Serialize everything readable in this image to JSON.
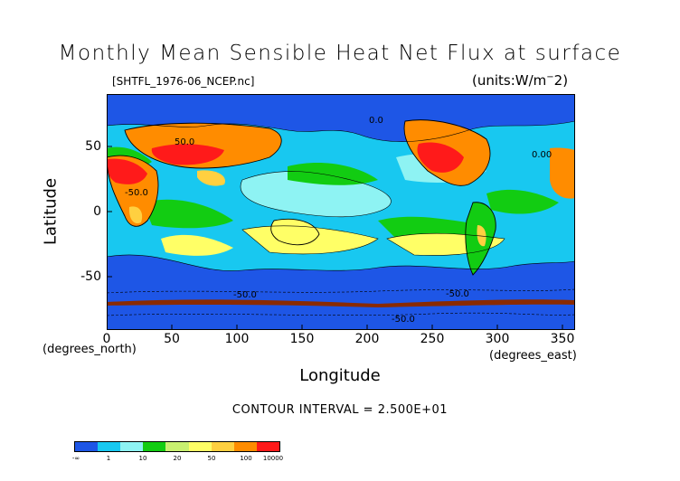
{
  "title": "Monthly Mean Sensible Heat Net Flux at surface",
  "file_label": "[SHTFL_1976-06_NCEP.nc]",
  "units_label": "(units:W/m^-2)",
  "x_axis": {
    "label": "Longitude",
    "unit_label": "(degrees_east)",
    "ticks": [
      "0",
      "50",
      "100",
      "150",
      "200",
      "250",
      "300",
      "350"
    ],
    "range": [
      0,
      360
    ]
  },
  "y_axis": {
    "label": "Latitude",
    "unit_label": "(degrees_north)",
    "ticks": [
      "50",
      "0",
      "-50"
    ],
    "range": [
      -90,
      90
    ]
  },
  "contour_interval": "CONTOUR INTERVAL = 2.500E+01",
  "contour_labels": [
    "50.0",
    "-50.0",
    "0.0",
    "-50.0",
    "-50.0",
    "0.00",
    "-50.0"
  ],
  "colorbar": {
    "colors": [
      "#1e56e6",
      "#18c8f0",
      "#8ef3f3",
      "#12cc12",
      "#c8f070",
      "#ffff66",
      "#ffd040",
      "#ff8c00",
      "#ff1a1a"
    ],
    "labels": [
      "-∞",
      "1",
      "10",
      "20",
      "50",
      "100",
      "10000"
    ]
  }
}
